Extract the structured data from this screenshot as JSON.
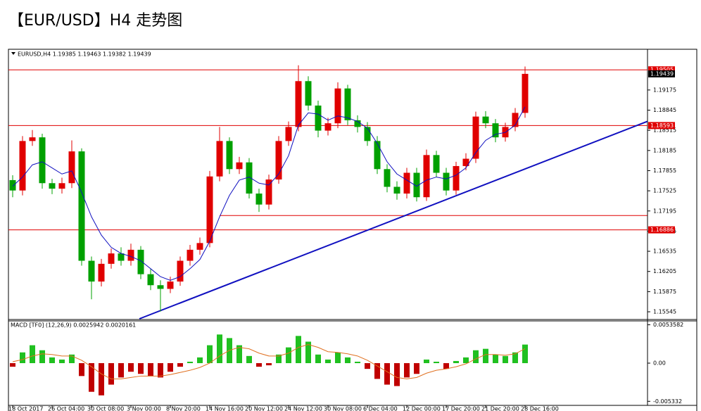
{
  "chart_data": [
    {
      "type": "candlestick",
      "title": "【EUR/USD】H4 走势图",
      "subtitle": "EURUSD,H4  1.19385 1.19463 1.19382 1.19439",
      "x": [
        "18 Oct 2017",
        null,
        null,
        null,
        "26 Oct 04:00",
        null,
        null,
        null,
        "30 Oct 08:00",
        null,
        null,
        null,
        "3 Nov 00:00",
        null,
        null,
        null,
        "8 Nov 20:00",
        null,
        null,
        null,
        "14 Nov 16:00",
        null,
        null,
        null,
        "20 Nov 12:00",
        null,
        null,
        null,
        "24 Nov 12:00",
        null,
        null,
        null,
        "30 Nov 08:00",
        null,
        null,
        null,
        "6 Dec 04:00",
        null,
        null,
        null,
        "12 Dec 00:00",
        null,
        null,
        null,
        "17 Dec 20:00",
        null,
        null,
        null,
        "21 Dec 20:00",
        null,
        null,
        null,
        "28 Dec 16:00"
      ],
      "open": [
        1.177,
        1.1753,
        1.1834,
        1.184,
        1.1765,
        1.1756,
        1.1765,
        1.1817,
        1.1638,
        1.1604,
        1.1633,
        1.165,
        1.1638,
        1.1656,
        1.1616,
        1.1598,
        1.1592,
        1.1604,
        1.1638,
        1.1656,
        1.1667,
        1.1776,
        1.1834,
        1.1788,
        1.1799,
        1.1748,
        1.173,
        1.1771,
        1.1834,
        1.1857,
        1.1932,
        1.1892,
        1.1851,
        1.1863,
        1.192,
        1.1868,
        1.1857,
        1.1834,
        1.1788,
        1.1759,
        1.1748,
        1.1782,
        1.1742,
        1.1811,
        1.1782,
        1.1753,
        1.1793,
        1.1805,
        1.1874,
        1.1863,
        1.184,
        1.1857,
        1.188
      ],
      "high": [
        1.1778,
        1.1842,
        1.1852,
        1.1846,
        1.1772,
        1.1774,
        1.1835,
        1.1822,
        1.1645,
        1.1641,
        1.1658,
        1.166,
        1.1666,
        1.1662,
        1.1624,
        1.1606,
        1.1612,
        1.1645,
        1.1664,
        1.1676,
        1.1785,
        1.1857,
        1.184,
        1.1808,
        1.1806,
        1.1756,
        1.1779,
        1.1842,
        1.1866,
        1.1958,
        1.194,
        1.19,
        1.1872,
        1.193,
        1.1926,
        1.1876,
        1.1865,
        1.1842,
        1.1796,
        1.1768,
        1.179,
        1.179,
        1.182,
        1.1818,
        1.179,
        1.18,
        1.1814,
        1.1882,
        1.1883,
        1.187,
        1.1864,
        1.1888,
        1.1956
      ],
      "low": [
        1.1742,
        1.1745,
        1.1826,
        1.1756,
        1.1747,
        1.1748,
        1.1757,
        1.163,
        1.1575,
        1.1596,
        1.1625,
        1.163,
        1.163,
        1.1608,
        1.159,
        1.1555,
        1.1585,
        1.1597,
        1.163,
        1.1648,
        1.166,
        1.1768,
        1.178,
        1.178,
        1.174,
        1.1718,
        1.1722,
        1.1764,
        1.1826,
        1.185,
        1.1884,
        1.184,
        1.1843,
        1.1855,
        1.186,
        1.1848,
        1.1826,
        1.178,
        1.175,
        1.1738,
        1.174,
        1.1735,
        1.1736,
        1.1775,
        1.1745,
        1.1746,
        1.1786,
        1.1798,
        1.1855,
        1.1832,
        1.1833,
        1.185,
        1.1872
      ],
      "close": [
        1.1753,
        1.1834,
        1.184,
        1.1765,
        1.1756,
        1.1765,
        1.1817,
        1.1638,
        1.1604,
        1.1633,
        1.165,
        1.1638,
        1.1656,
        1.1616,
        1.1598,
        1.1592,
        1.1604,
        1.1638,
        1.1656,
        1.1667,
        1.1776,
        1.1834,
        1.1788,
        1.1799,
        1.1748,
        1.173,
        1.1771,
        1.1834,
        1.1857,
        1.1932,
        1.1892,
        1.1851,
        1.1863,
        1.192,
        1.1868,
        1.1857,
        1.1834,
        1.1788,
        1.1759,
        1.1748,
        1.1782,
        1.1742,
        1.1811,
        1.1782,
        1.1753,
        1.1793,
        1.1805,
        1.1874,
        1.1863,
        1.184,
        1.1857,
        1.188,
        1.19439
      ],
      "up_color": "#e00000",
      "down_color": "#00a000",
      "ma": {
        "color": "#1010c0",
        "values": [
          1.176,
          1.1775,
          1.1795,
          1.18,
          1.179,
          1.178,
          1.1785,
          1.175,
          1.171,
          1.168,
          1.166,
          1.165,
          1.1645,
          1.1638,
          1.1625,
          1.1612,
          1.1606,
          1.1612,
          1.1625,
          1.164,
          1.167,
          1.171,
          1.1745,
          1.177,
          1.1775,
          1.1765,
          1.1762,
          1.178,
          1.181,
          1.186,
          1.188,
          1.1878,
          1.1868,
          1.1875,
          1.1872,
          1.1866,
          1.1855,
          1.183,
          1.18,
          1.178,
          1.177,
          1.176,
          1.177,
          1.1775,
          1.1772,
          1.1778,
          1.179,
          1.1815,
          1.1835,
          1.1845,
          1.1848,
          1.186,
          1.189
        ]
      },
      "ylim": [
        1.1543,
        1.1983
      ],
      "yticks": [
        1.19175,
        1.18845,
        1.18515,
        1.18185,
        1.17855,
        1.17525,
        1.17195,
        1.16865,
        1.16535,
        1.16205,
        1.15875,
        1.15545
      ],
      "hlines": [
        1.19505,
        1.18593,
        1.16886
      ],
      "hline_color": "#e00000",
      "segment": {
        "x": [
          21,
          64.4
        ],
        "y": 1.1712
      },
      "trendline": {
        "x": [
          12.86,
          64.4
        ],
        "y": [
          1.1543,
          1.1866
        ],
        "color": "#1010c0"
      },
      "last_price": 1.19439
    },
    {
      "type": "macd",
      "title": "MACD [TF0] (12,26,9) 0.0025942 0.0020161",
      "histogram": [
        -0.0005,
        0.0015,
        0.0025,
        0.0018,
        0.0008,
        0.0005,
        0.0012,
        -0.0018,
        -0.004,
        -0.0045,
        -0.003,
        -0.002,
        -0.0012,
        -0.0015,
        -0.0018,
        -0.002,
        -0.0012,
        -0.0005,
        0.0002,
        0.0008,
        0.0025,
        0.004,
        0.0035,
        0.0025,
        0.001,
        -0.0005,
        -0.0003,
        0.0012,
        0.0022,
        0.0038,
        0.003,
        0.0012,
        0.0005,
        0.0015,
        0.0008,
        0.0002,
        -0.0008,
        -0.0022,
        -0.003,
        -0.0032,
        -0.002,
        -0.0015,
        0.0005,
        0.0002,
        -0.0008,
        0.0003,
        0.0008,
        0.0018,
        0.002,
        0.0012,
        0.001,
        0.0015,
        0.0025942
      ],
      "signal": [
        0.0002,
        0.0005,
        0.001,
        0.0013,
        0.0012,
        0.001,
        0.001,
        0.0004,
        -0.0005,
        -0.0015,
        -0.0022,
        -0.0022,
        -0.002,
        -0.0018,
        -0.0018,
        -0.0018,
        -0.0016,
        -0.0013,
        -0.001,
        -0.0006,
        0.0,
        0.001,
        0.0018,
        0.0022,
        0.002,
        0.0014,
        0.001,
        0.001,
        0.0014,
        0.0022,
        0.0026,
        0.0022,
        0.0016,
        0.0015,
        0.0013,
        0.001,
        0.0004,
        -0.0004,
        -0.0012,
        -0.002,
        -0.0022,
        -0.002,
        -0.0014,
        -0.001,
        -0.0008,
        -0.0005,
        -0.0001,
        0.0006,
        0.0012,
        0.0012,
        0.0011,
        0.0013,
        0.0020161
      ],
      "positive_color": "#20c020",
      "negative_color": "#c00000",
      "signal_color": "#e07020",
      "ylim": [
        -0.0057,
        0.0057
      ],
      "yticks": [
        0.0053582,
        {
          "value": 0,
          "label": "0.00"
        },
        -0.005332
      ]
    }
  ]
}
